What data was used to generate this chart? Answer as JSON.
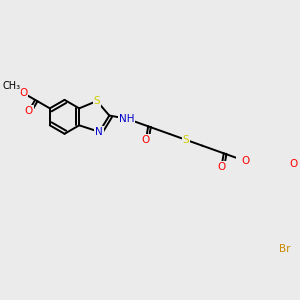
{
  "bg_color": "#ebebeb",
  "bond_color": "#000000",
  "bond_width": 1.4,
  "atom_colors": {
    "O": "#ff0000",
    "N": "#0000cd",
    "S": "#cccc00",
    "Br": "#cc8800",
    "C": "#000000",
    "H": "#000000"
  },
  "font_size": 7.5,
  "figsize": [
    3.0,
    3.0
  ],
  "dpi": 100
}
